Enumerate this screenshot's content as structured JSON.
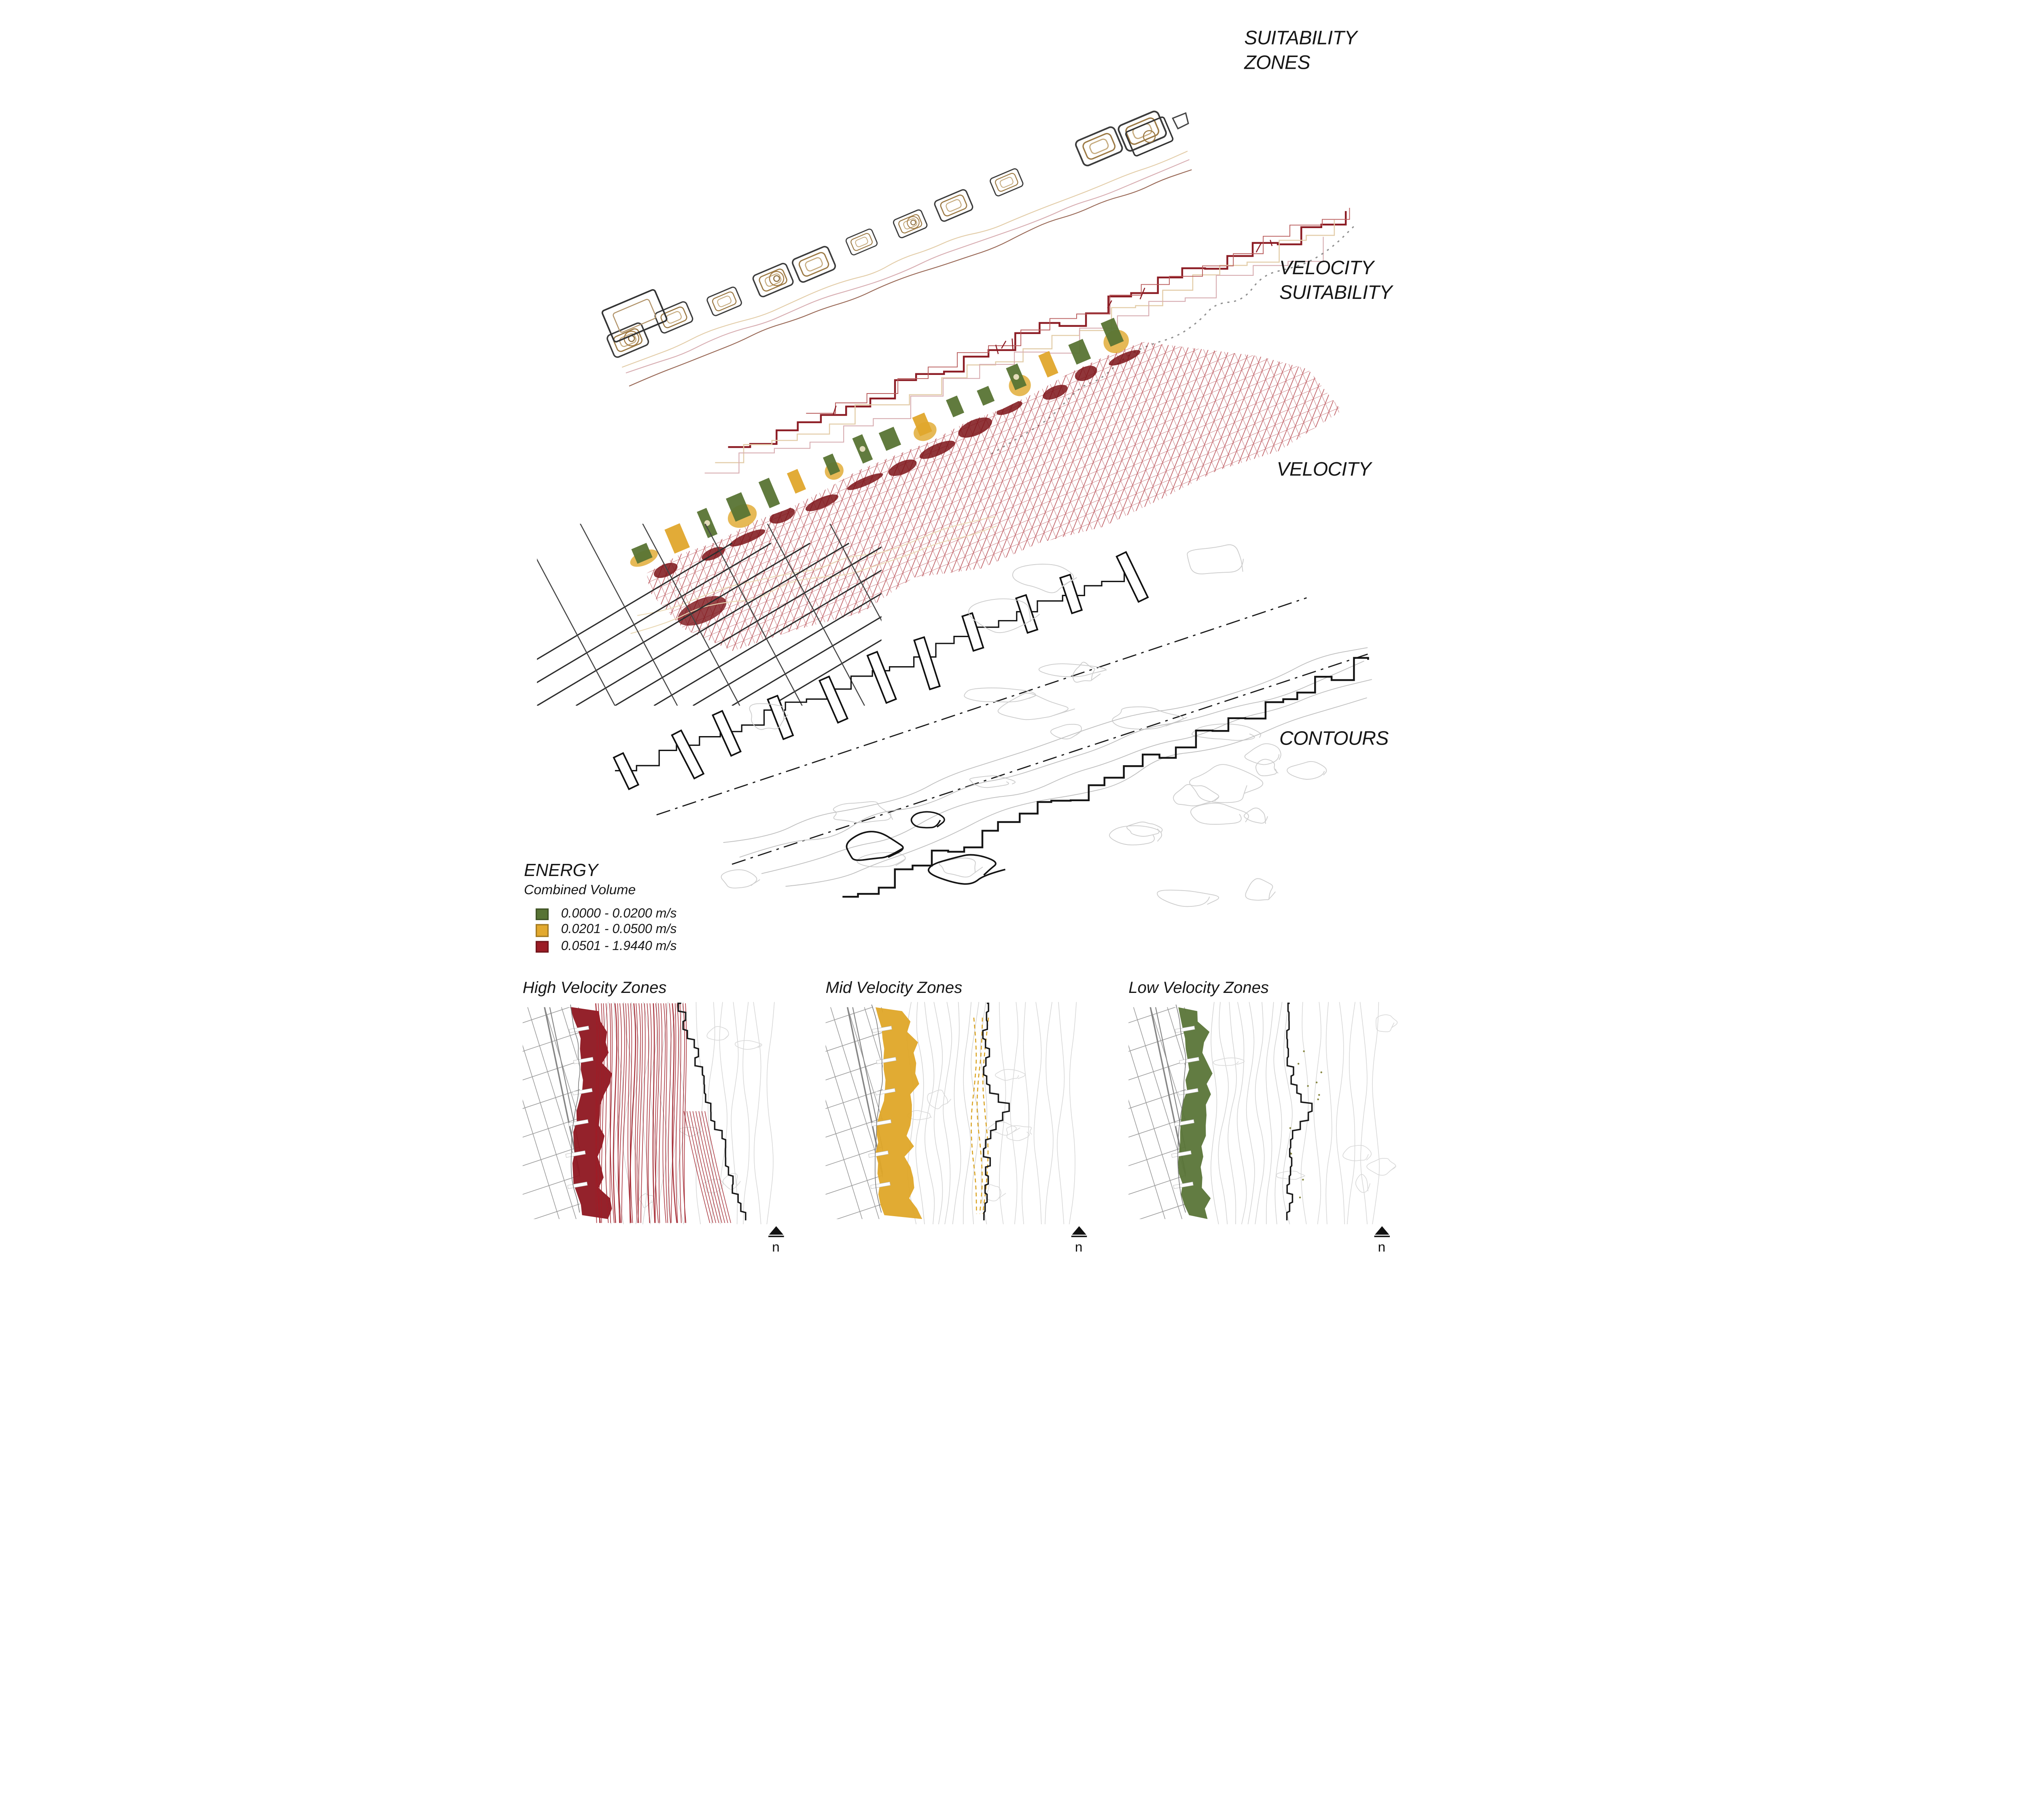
{
  "palette": {
    "ink": "#141414",
    "street_grey": "#9b9b9b",
    "contour_grey": "#cdcdcd",
    "mesh_red": "#a8252d",
    "dark_red": "#7c1318",
    "stream_red": "#9e1c26",
    "green": "#587434",
    "yellow": "#e0a72c",
    "yellow_dark": "#d9a21f",
    "tan": "#b08d57",
    "cream": "#e3cda9",
    "pink": "#d8aeb2"
  },
  "axon": {
    "layers": [
      {
        "id": "suitability-zones",
        "label": "SUITABILITY\nZONES"
      },
      {
        "id": "velocity-suitability",
        "label": "VELOCITY\nSUITABILITY"
      },
      {
        "id": "velocity",
        "label": "VELOCITY"
      },
      {
        "id": "contours",
        "label": "CONTOURS"
      }
    ]
  },
  "legend": {
    "title": "ENERGY",
    "subtitle": "Combined Volume",
    "items": [
      {
        "range": "0.0000 - 0.0200 m/s",
        "color": "#587434"
      },
      {
        "range": "0.0201 - 0.0500 m/s",
        "color": "#e2a92e"
      },
      {
        "range": "0.0501 - 1.9440 m/s",
        "color": "#9c1c25"
      }
    ]
  },
  "maps": {
    "north_label": "n",
    "panels": [
      {
        "id": "high",
        "title": "High Velocity Zones",
        "zone_color": "#8e1620"
      },
      {
        "id": "mid",
        "title": "Mid Velocity Zones",
        "zone_color": "#dfa728"
      },
      {
        "id": "low",
        "title": "Low Velocity Zones",
        "zone_color": "#5a7538"
      }
    ]
  }
}
